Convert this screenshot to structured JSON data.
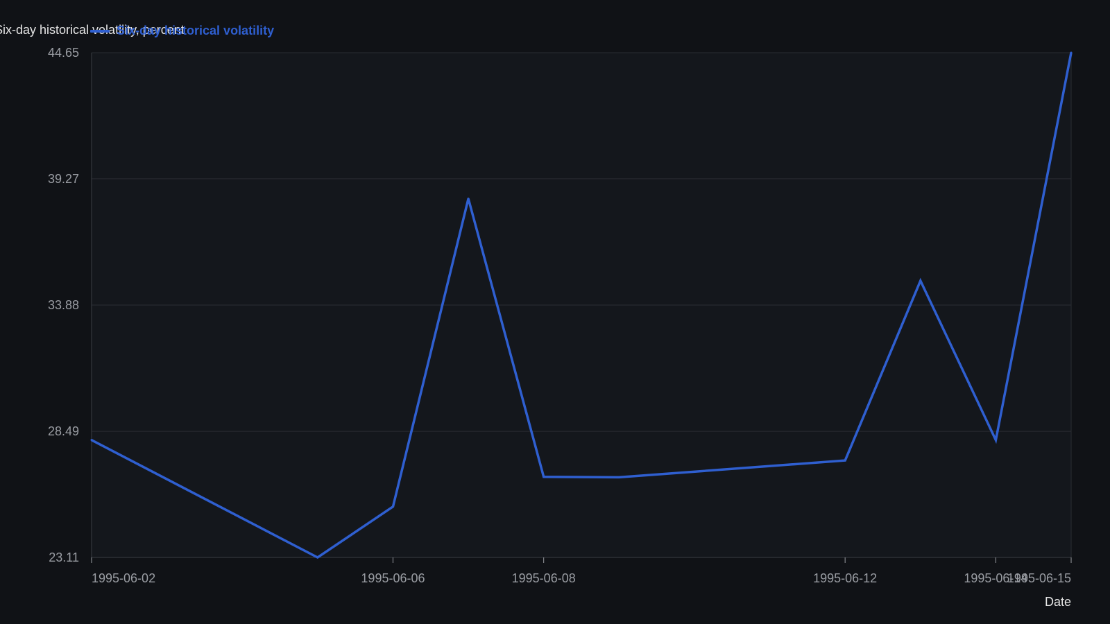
{
  "chart_data": {
    "type": "line",
    "title": "",
    "xlabel": "Date",
    "ylabel": "Six-day historical volatility, percent",
    "ylim": [
      23.11,
      44.65
    ],
    "y_ticks": [
      "23.11",
      "28.49",
      "33.88",
      "39.27",
      "44.65"
    ],
    "x_range": [
      "1995-06-02",
      "1995-06-15"
    ],
    "x_ticks": [
      "1995-06-02",
      "1995-06-06",
      "1995-06-08",
      "1995-06-12",
      "1995-06-14",
      "1995-06-15"
    ],
    "grid": true,
    "legend_position": "top-left",
    "series": [
      {
        "name": "Six-day historical volatility",
        "color": "#2f5fd0",
        "x": [
          "1995-06-02",
          "1995-06-05",
          "1995-06-06",
          "1995-06-07",
          "1995-06-08",
          "1995-06-09",
          "1995-06-12",
          "1995-06-13",
          "1995-06-14",
          "1995-06-15"
        ],
        "y": [
          28.12,
          23.11,
          25.28,
          38.42,
          26.55,
          26.53,
          27.25,
          34.92,
          28.12,
          44.65
        ]
      }
    ]
  },
  "colors": {
    "background": "#101216",
    "plot_background": "#14171c",
    "grid": "#2a2d33",
    "axis": "#3a3d44",
    "tick_text": "#9a9da3",
    "label_text": "#e6e6e6",
    "series": "#2f5fd0"
  }
}
